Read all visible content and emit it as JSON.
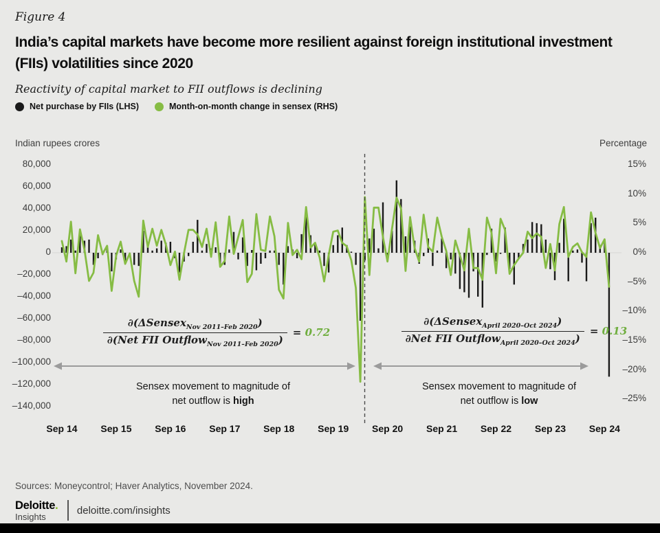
{
  "figure_label": "Figure 4",
  "title": {
    "line1": "India’s capital markets have become more resilient against foreign institutional investment",
    "line2": "(FIIs) volatilities since 2020"
  },
  "subtitle": "Reactivity of capital market to FII outflows is declining",
  "legend": [
    {
      "label": "Net purchase by FIIs (LHS)",
      "color": "#1a1a1a"
    },
    {
      "label": "Month-on-month change in sensex (RHS)",
      "color": "#86bc44"
    }
  ],
  "axes": {
    "left_title": "Indian rupees crores",
    "right_title": "Percentage",
    "left_ticks": [
      "80,000",
      "60,000",
      "40,000",
      "20,000",
      "0",
      "–20,000",
      "–40,000",
      "–60,000",
      "–80,000",
      "–100,000",
      "–120,000",
      "–140,000"
    ],
    "left_tick_values": [
      80000,
      60000,
      40000,
      20000,
      0,
      -20000,
      -40000,
      -60000,
      -80000,
      -100000,
      -120000,
      -140000
    ],
    "right_ticks": [
      "15%",
      "10%",
      "5%",
      "0%",
      "–5%",
      "–10%",
      "–15%",
      "–20%",
      "–25%"
    ],
    "right_tick_values": [
      15,
      10,
      5,
      0,
      -5,
      -10,
      -15,
      -20,
      -25
    ],
    "x_ticks": [
      "Sep 14",
      "Sep 15",
      "Sep 16",
      "Sep 17",
      "Sep 18",
      "Sep 19",
      "Sep 20",
      "Sep 21",
      "Sep 22",
      "Sep 23",
      "Sep 24"
    ]
  },
  "annotations": {
    "formula_left": {
      "num_pre": "∂(ΔSensex",
      "num_sub": "Nov 2011–Feb 2020",
      "num_post": ")",
      "den_pre": "∂(Net FII Outflow",
      "den_sub": "Nov 2011–Feb 2020",
      "den_post": ")",
      "equals": "=",
      "value": "0.72"
    },
    "formula_right": {
      "num_pre": "∂(ΔSensex",
      "num_sub": "April 2020–Oct 2024",
      "num_post": ")",
      "den_pre": "∂Net FII Outflow",
      "den_sub": "April 2020–Oct 2024",
      "den_post": ")",
      "equals": "=",
      "value": "0.13"
    },
    "caption_left": {
      "line1": "Sensex movement to magnitude of",
      "line2_pre": "net outflow is ",
      "line2_bold": "high"
    },
    "caption_right": {
      "line1": "Sensex movement to magnitude of",
      "line2_pre": "net outflow is ",
      "line2_bold": "low"
    }
  },
  "source": "Sources: Moneycontrol; Haver Analytics, November 2024.",
  "footer": {
    "brand_name": "Deloitte",
    "brand_dot": ".",
    "brand_sub": "Insights",
    "link": "deloitte.com/insights"
  },
  "chart_data": {
    "type": "bar+line",
    "x_frequency": "monthly",
    "x_start": "2014-09",
    "x_end": "2024-10",
    "left_axis": {
      "label": "Indian rupees crores",
      "range": [
        -140000,
        80000
      ]
    },
    "right_axis": {
      "label": "Percentage",
      "range": [
        -25,
        15
      ]
    },
    "grid": "zero-line only",
    "divider": {
      "type": "dashed-vertical-line",
      "position": "2020-03/04"
    },
    "series": [
      {
        "name": "Net purchase by FIIs (LHS)",
        "type": "bar",
        "axis": "left",
        "unit": "INR crore",
        "color": "#1a1a1a",
        "values": [
          5000,
          6000,
          12000,
          2000,
          20000,
          11000,
          12000,
          -11000,
          -5000,
          -2000,
          5000,
          -17000,
          -6000,
          3000,
          -8000,
          -2000,
          -11000,
          -12000,
          20000,
          8000,
          2000,
          4000,
          11000,
          9000,
          10000,
          -5000,
          -18000,
          -8000,
          -3000,
          10000,
          30000,
          2000,
          8000,
          4000,
          5000,
          -13000,
          -11000,
          3000,
          19000,
          -6000,
          14000,
          -12000,
          2500,
          -16000,
          -10000,
          -5000,
          2000,
          2000,
          -11000,
          -29000,
          6000,
          3000,
          -5000,
          17000,
          33000,
          16000,
          9000,
          2000,
          -12000,
          -18000,
          7000,
          16000,
          23000,
          7000,
          1000,
          -11000,
          -62000,
          -7000,
          13000,
          22000,
          4000,
          46000,
          -8000,
          20000,
          66000,
          49000,
          15000,
          24000,
          11000,
          -10000,
          -3000,
          13000,
          -12000,
          2000,
          13000,
          -14000,
          -6000,
          -19000,
          -33000,
          -36000,
          -41000,
          -17000,
          -40000,
          -50000,
          -2000,
          22000,
          -8000,
          -1000,
          23000,
          -15000,
          -29000,
          -5000,
          8000,
          12000,
          28000,
          27000,
          26000,
          12000,
          -15000,
          -25000,
          9000,
          31000,
          -26000,
          2000,
          3000,
          -9000,
          -26000,
          27000,
          32000,
          7000,
          12000,
          -113000
        ]
      },
      {
        "name": "Month-on-month change in sensex (RHS)",
        "type": "line",
        "axis": "right",
        "unit": "%",
        "color": "#86bc44",
        "values": [
          2.0,
          -1.5,
          5.3,
          -3.5,
          4.0,
          0.5,
          -4.8,
          -3.4,
          3.0,
          -0.2,
          1.2,
          -6.5,
          -0.5,
          1.9,
          -1.9,
          -0.1,
          -4.8,
          -7.5,
          5.5,
          1.0,
          4.1,
          1.2,
          3.9,
          1.4,
          -2.1,
          0.2,
          -4.6,
          -0.1,
          3.9,
          3.9,
          3.1,
          1.0,
          4.1,
          -0.7,
          5.2,
          -2.4,
          -1.4,
          6.2,
          -0.2,
          2.7,
          5.6,
          -5.0,
          -3.6,
          6.6,
          0.5,
          0.3,
          6.2,
          2.8,
          -6.3,
          -7.8,
          5.1,
          -0.4,
          0.5,
          -1.1,
          7.8,
          0.9,
          1.7,
          -0.8,
          -4.9,
          -0.4,
          3.6,
          3.8,
          1.7,
          1.1,
          -1.3,
          -6.0,
          -22.0,
          9.5,
          -3.8,
          7.7,
          7.7,
          2.7,
          -1.5,
          4.1,
          9.4,
          7.5,
          -3.1,
          6.1,
          0.8,
          -1.5,
          6.5,
          1.0,
          0.2,
          6.0,
          2.7,
          0.3,
          -3.8,
          2.1,
          -0.4,
          -3.0,
          4.1,
          -2.6,
          -2.6,
          -4.6,
          6.0,
          3.4,
          -3.5,
          5.8,
          3.9,
          -3.6,
          -2.1,
          -1.0,
          0.0,
          3.6,
          2.5,
          3.3,
          2.7,
          -2.6,
          1.5,
          -3.0,
          4.9,
          7.8,
          -0.7,
          1.0,
          1.6,
          0.1,
          -0.7,
          6.9,
          3.4,
          0.8,
          2.3,
          -5.8
        ]
      }
    ]
  }
}
